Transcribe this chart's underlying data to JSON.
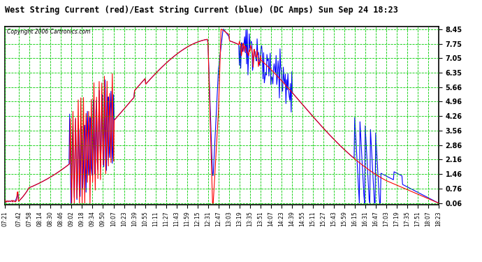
{
  "title": "West String Current (red)/East String Current (blue) (DC Amps) Sun Sep 24 18:23",
  "copyright": "Copyright 2006 Cartronics.com",
  "background_color": "#ffffff",
  "plot_bg_color": "#ffffff",
  "grid_color": "#00cc00",
  "red_color": "#ff0000",
  "blue_color": "#0000ff",
  "ylim": [
    0.06,
    8.45
  ],
  "yticks": [
    0.06,
    0.76,
    1.46,
    2.16,
    2.86,
    3.56,
    4.26,
    4.96,
    5.66,
    6.35,
    7.05,
    7.75,
    8.45
  ],
  "xtick_labels": [
    "07:21",
    "07:42",
    "07:58",
    "08:14",
    "08:30",
    "08:46",
    "09:02",
    "09:18",
    "09:34",
    "09:50",
    "10:07",
    "10:23",
    "10:39",
    "10:55",
    "11:11",
    "11:27",
    "11:43",
    "11:59",
    "12:15",
    "12:31",
    "12:47",
    "13:03",
    "13:19",
    "13:35",
    "13:51",
    "14:07",
    "14:23",
    "14:39",
    "14:55",
    "15:11",
    "15:27",
    "15:43",
    "15:59",
    "16:15",
    "16:31",
    "16:47",
    "17:03",
    "17:19",
    "17:35",
    "17:51",
    "18:07",
    "18:23"
  ]
}
